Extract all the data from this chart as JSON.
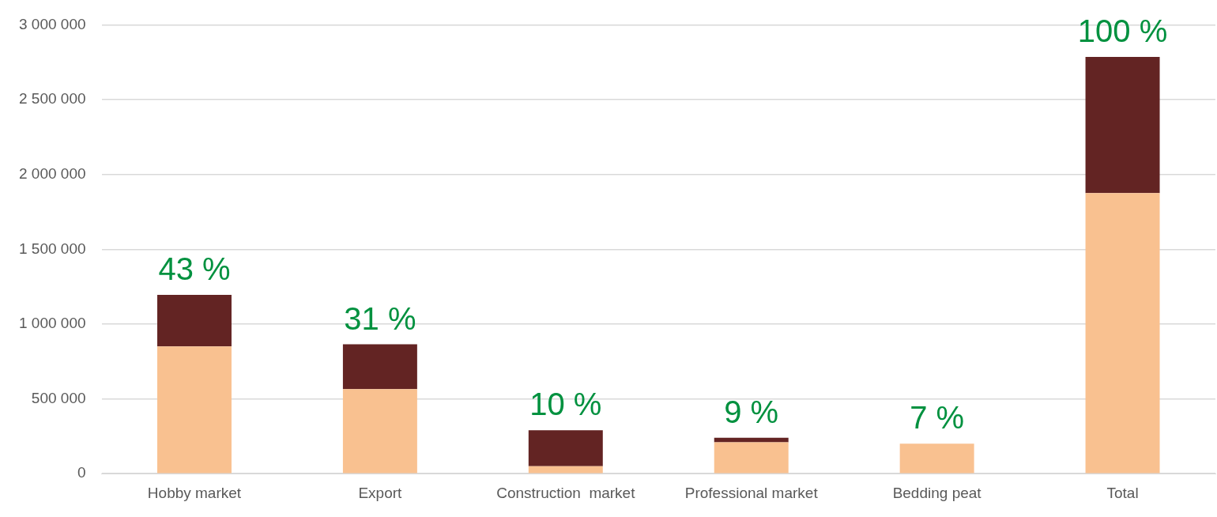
{
  "chart_data": {
    "type": "bar",
    "stacked": true,
    "categories": [
      "Hobby market",
      "Export",
      "Construction  market",
      "Professional market",
      "Bedding peat",
      "Total"
    ],
    "series": [
      {
        "color": "#f9c190",
        "values": [
          850000,
          565000,
          50000,
          210000,
          200000,
          1875000
        ]
      },
      {
        "color": "#632423",
        "values": [
          345000,
          300000,
          240000,
          30000,
          0,
          910000
        ]
      }
    ],
    "ylim": [
      0,
      3000000
    ],
    "yticks": [
      {
        "value": 0,
        "label": "0"
      },
      {
        "value": 500000,
        "label": "500 000"
      },
      {
        "value": 1000000,
        "label": "1 000 000"
      },
      {
        "value": 1500000,
        "label": "1 500 000"
      },
      {
        "value": 2000000,
        "label": "2 000 000"
      },
      {
        "value": 2500000,
        "label": "2 500 000"
      },
      {
        "value": 3000000,
        "label": "3 000 000"
      }
    ],
    "grid": "y",
    "annotations": [
      {
        "text": "43 %",
        "x": "Hobby market",
        "y": 1195000
      },
      {
        "text": "31 %",
        "x": "Export",
        "y": 865000
      },
      {
        "text": "10 %",
        "x": "Construction  market",
        "y": 290000
      },
      {
        "text": "9 %",
        "x": "Professional market",
        "y": 240000
      },
      {
        "text": "7 %",
        "x": "Bedding peat",
        "y": 200000
      },
      {
        "text": "100 %",
        "x": "Total",
        "y": 2785000
      }
    ]
  }
}
